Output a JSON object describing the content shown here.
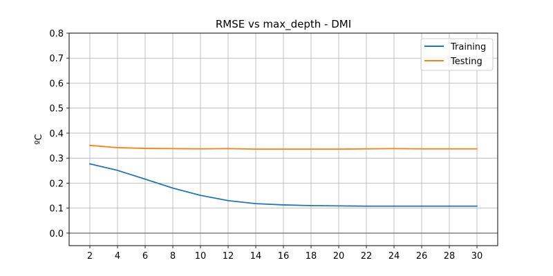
{
  "chart_data": {
    "type": "line",
    "title": "RMSE vs max_depth - DMI",
    "xlabel": "",
    "ylabel": "ºC",
    "x": [
      2,
      4,
      6,
      8,
      10,
      12,
      14,
      16,
      18,
      20,
      22,
      24,
      26,
      28,
      30
    ],
    "xlim": [
      0.5,
      31.5
    ],
    "ylim": [
      -0.05,
      0.8
    ],
    "xticks": [
      "2",
      "4",
      "6",
      "8",
      "10",
      "12",
      "14",
      "16",
      "18",
      "20",
      "22",
      "24",
      "26",
      "28",
      "30"
    ],
    "yticks": [
      "0.0",
      "0.1",
      "0.2",
      "0.3",
      "0.4",
      "0.5",
      "0.6",
      "0.7",
      "0.8"
    ],
    "grid": true,
    "legend_position": "top-right",
    "reference_line": {
      "y": 0.0,
      "color": "#808080"
    },
    "series": [
      {
        "name": "Training",
        "color": "#1f77b4",
        "values": [
          0.277,
          0.251,
          0.216,
          0.18,
          0.151,
          0.13,
          0.118,
          0.113,
          0.11,
          0.109,
          0.108,
          0.108,
          0.108,
          0.108,
          0.108
        ]
      },
      {
        "name": "Testing",
        "color": "#ff7f0e",
        "values": [
          0.351,
          0.342,
          0.339,
          0.338,
          0.337,
          0.338,
          0.336,
          0.336,
          0.336,
          0.336,
          0.337,
          0.338,
          0.337,
          0.337,
          0.337
        ]
      }
    ]
  }
}
